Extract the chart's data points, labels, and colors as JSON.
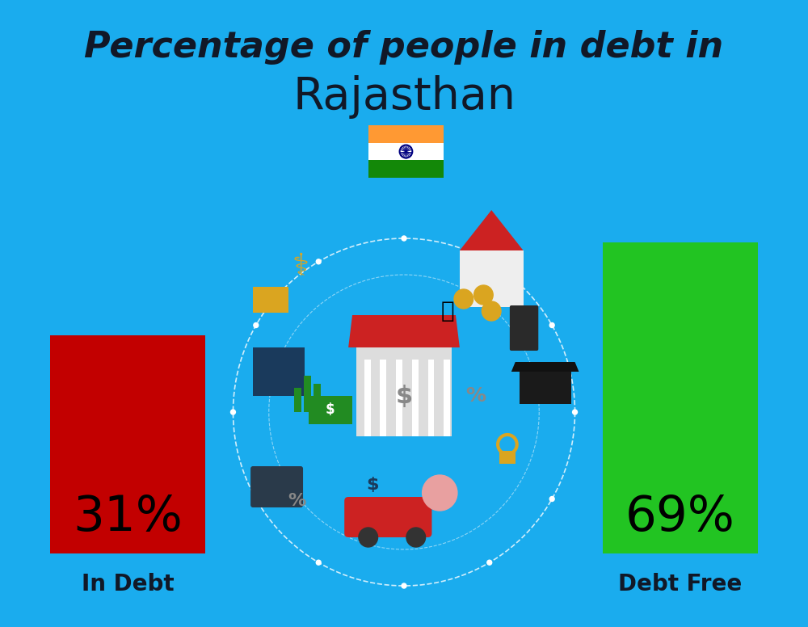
{
  "background_color": "#1AACEE",
  "title_line1": "Percentage of people in debt in",
  "title_line2": "Rajasthan",
  "bar1_label": "In Debt",
  "bar1_color": "#C20000",
  "bar1_text": "31%",
  "bar2_label": "Debt Free",
  "bar2_color": "#22C422",
  "bar2_text": "69%",
  "title_color": "#111827",
  "label_color": "#111827",
  "value_color": "#000000",
  "title_fontsize": 32,
  "subtitle_fontsize": 40,
  "bar_value_fontsize": 44,
  "bar_label_fontsize": 20,
  "flag_saffron": "#FF9933",
  "flag_white": "#FFFFFF",
  "flag_green": "#138808",
  "flag_navy": "#000080"
}
